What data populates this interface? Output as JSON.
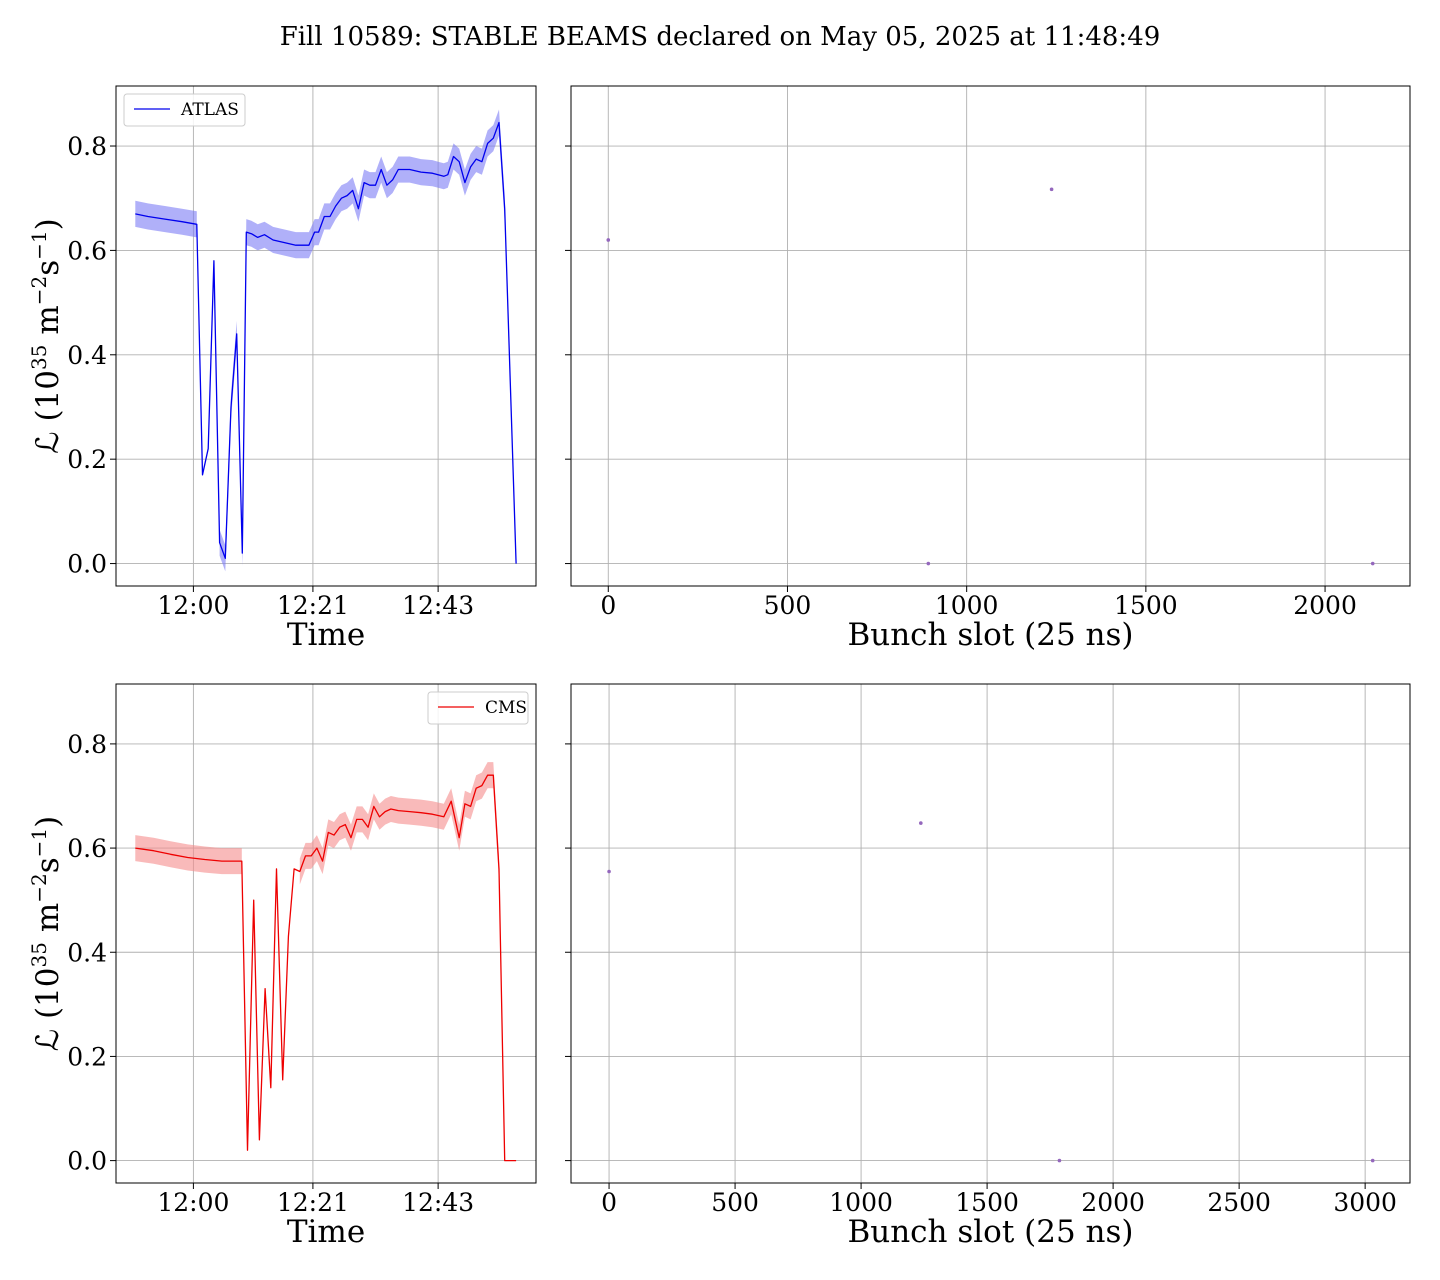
{
  "figure": {
    "title": "Fill 10589: STABLE BEAMS declared on May 05, 2025 at 11:48:49"
  },
  "chart_data": [
    {
      "id": "atlas-time",
      "type": "area",
      "xlabel": "Time",
      "ylabel_main": "ℒ (10",
      "ylabel_exp1": "35",
      "ylabel_mid": " m",
      "ylabel_exp2": "−2",
      "ylabel_s": "s",
      "ylabel_exp3": "−1",
      "ylabel_end": ")",
      "x_ticks": [
        "12:00",
        "12:21",
        "12:43"
      ],
      "x_tick_minutes": [
        0,
        21,
        43
      ],
      "xlim_minutes": [
        -13.6,
        60.2
      ],
      "y_ticks": [
        "0.0",
        "0.2",
        "0.4",
        "0.6",
        "0.8"
      ],
      "ylim": [
        -0.043,
        0.915
      ],
      "legend": {
        "placement": "upper-left",
        "label": "ATLAS"
      },
      "color": "#0000ee",
      "band_color": "#7b7bf5",
      "series": [
        {
          "name": "ATLAS",
          "x_minutes": [
            -10.2,
            -8,
            -5,
            -2,
            0.6,
            1.6,
            2.6,
            3.6,
            4.6,
            5.6,
            6.6,
            7.6,
            8.6,
            9.3,
            10.2,
            11.3,
            12.5,
            14,
            16,
            18,
            19.5,
            20.3,
            21.3,
            22,
            23,
            24,
            25,
            26,
            27,
            28,
            29,
            30,
            31,
            32,
            33,
            34,
            35,
            36,
            38,
            40,
            42,
            43,
            44,
            44.7,
            45.7,
            46.7,
            47.7,
            48.7,
            49.7,
            50.7,
            51.7,
            52.7,
            53.7,
            54.7,
            56.7
          ],
          "y": [
            0.67,
            0.665,
            0.66,
            0.655,
            0.65,
            0.17,
            0.22,
            0.58,
            0.04,
            0.01,
            0.3,
            0.44,
            0.02,
            0.635,
            0.632,
            0.625,
            0.63,
            0.62,
            0.615,
            0.61,
            0.61,
            0.61,
            0.635,
            0.635,
            0.665,
            0.665,
            0.685,
            0.7,
            0.705,
            0.715,
            0.68,
            0.73,
            0.725,
            0.725,
            0.755,
            0.725,
            0.735,
            0.755,
            0.755,
            0.75,
            0.748,
            0.745,
            0.742,
            0.745,
            0.78,
            0.77,
            0.73,
            0.76,
            0.775,
            0.77,
            0.805,
            0.815,
            0.845,
            0.68,
            0.0
          ],
          "band_start": 0,
          "band_end": 4,
          "band_start2": 8,
          "band_end2": 53,
          "band_half_width": 0.025
        }
      ]
    },
    {
      "id": "atlas-bunch",
      "type": "scatter",
      "xlabel": "Bunch slot (25 ns)",
      "x_ticks": [
        "0",
        "500",
        "1000",
        "1500",
        "2000"
      ],
      "x_tick_values": [
        0,
        500,
        1000,
        1500,
        2000
      ],
      "xlim": [
        -104,
        2237
      ],
      "ylim": [
        -0.043,
        0.915
      ],
      "color": "#9467bd",
      "points": [
        {
          "x": 0,
          "y": 0.62
        },
        {
          "x": 893,
          "y": 0.0
        },
        {
          "x": 1237,
          "y": 0.717
        },
        {
          "x": 2133,
          "y": 0.0
        }
      ]
    },
    {
      "id": "cms-time",
      "type": "area",
      "xlabel": "Time",
      "ylabel_main": "ℒ (10",
      "ylabel_exp1": "35",
      "ylabel_mid": " m",
      "ylabel_exp2": "−2",
      "ylabel_s": "s",
      "ylabel_exp3": "−1",
      "ylabel_end": ")",
      "x_ticks": [
        "12:00",
        "12:21",
        "12:43"
      ],
      "x_tick_minutes": [
        0,
        21,
        43
      ],
      "xlim_minutes": [
        -13.6,
        60.2
      ],
      "y_ticks": [
        "0.0",
        "0.2",
        "0.4",
        "0.6",
        "0.8"
      ],
      "ylim": [
        -0.043,
        0.915
      ],
      "legend": {
        "placement": "upper-right",
        "label": "CMS"
      },
      "color": "#ee0000",
      "band_color": "#f58c8c",
      "series": [
        {
          "name": "CMS",
          "x_minutes": [
            -10.2,
            -7,
            -4,
            -1,
            2,
            5,
            8.5,
            9.5,
            10.6,
            11.6,
            12.6,
            13.6,
            14.6,
            15.7,
            16.7,
            17.7,
            18.7,
            19.7,
            20.7,
            21.7,
            22.7,
            23.7,
            24.7,
            25.7,
            26.7,
            27.7,
            28.7,
            29.7,
            30.7,
            31.7,
            32.7,
            33.7,
            34.7,
            36,
            38,
            40,
            42,
            44,
            45.3,
            46.7,
            47.7,
            48.7,
            49.7,
            50.7,
            51.7,
            52.7,
            53.7,
            54.7,
            56.7
          ],
          "y": [
            0.6,
            0.595,
            0.588,
            0.582,
            0.578,
            0.575,
            0.575,
            0.02,
            0.5,
            0.04,
            0.33,
            0.14,
            0.56,
            0.155,
            0.43,
            0.56,
            0.555,
            0.585,
            0.585,
            0.6,
            0.575,
            0.63,
            0.625,
            0.64,
            0.645,
            0.62,
            0.655,
            0.655,
            0.64,
            0.68,
            0.66,
            0.67,
            0.675,
            0.672,
            0.67,
            0.668,
            0.665,
            0.66,
            0.69,
            0.62,
            0.685,
            0.68,
            0.715,
            0.72,
            0.74,
            0.74,
            0.56,
            0.0,
            0.0
          ],
          "band_start": 0,
          "band_end": 6,
          "band_start2": 16,
          "band_end2": 46,
          "band_half_width": 0.025
        }
      ]
    },
    {
      "id": "cms-bunch",
      "type": "scatter",
      "xlabel": "Bunch slot (25 ns)",
      "x_ticks": [
        "0",
        "500",
        "1000",
        "1500",
        "2000",
        "2500",
        "3000"
      ],
      "x_tick_values": [
        0,
        500,
        1000,
        1500,
        2000,
        2500,
        3000
      ],
      "xlim": [
        -151,
        3178
      ],
      "ylim": [
        -0.043,
        0.915
      ],
      "color": "#9467bd",
      "points": [
        {
          "x": 0,
          "y": 0.555
        },
        {
          "x": 1237,
          "y": 0.648
        },
        {
          "x": 1787,
          "y": 0.0
        },
        {
          "x": 3030,
          "y": 0.0
        }
      ]
    }
  ]
}
